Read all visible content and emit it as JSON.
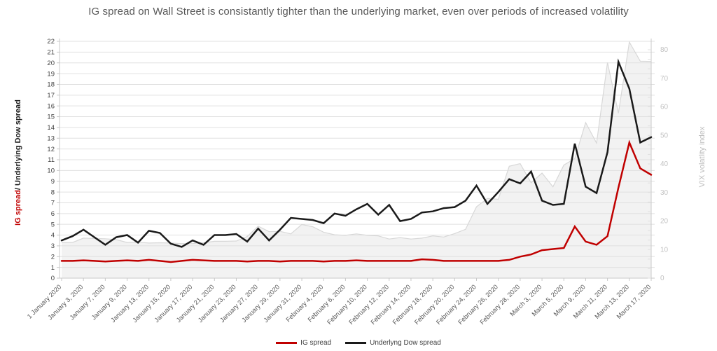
{
  "title": "IG spread on Wall Street is consistantly tighter than the underlying market, even over periods of increased volatility",
  "chart_data": {
    "type": "line",
    "title": "IG spread on Wall Street is consistantly tighter than the underlying market, even over periods of increased volatility",
    "x_tick_labels": [
      "1 January 2020",
      "January 3, 2020",
      "January 7, 2020",
      "January 9, 2020",
      "January 13, 2020",
      "January 15, 2020",
      "January 17, 2020",
      "January 21, 2020",
      "January 23, 2020",
      "January 27, 2020",
      "January 29, 2020",
      "January 31, 2020",
      "February 4, 2020",
      "February 6, 2020",
      "February 10, 2020",
      "February 12, 2020",
      "February 14, 2020",
      "February 18, 2020",
      "February 20, 2020",
      "February 24, 2020",
      "February 26, 2020",
      "February 28, 2020",
      "March 3, 2020",
      "March 5, 2020",
      "March 9, 2020",
      "March 11, 2020",
      "March 13, 2020",
      "March 17, 2020"
    ],
    "points_per_label": 2,
    "left_axis": {
      "title_red": "IG spread",
      "title_rest": "/ Underlying Dow spread",
      "min": 0,
      "max": 22,
      "step": 1
    },
    "right_axis": {
      "title": "VIX volatlity index",
      "min": 0,
      "max": 80,
      "step": 10
    },
    "grid": true,
    "legend_position": "bottom",
    "legend": [
      {
        "label": "IG spread",
        "color": "#c00000"
      },
      {
        "label": "Underlyng Dow spread",
        "color": "#1a1a1a"
      }
    ],
    "series": [
      {
        "name": "IG spread",
        "type": "line",
        "axis": "left",
        "color": "#c00000",
        "values": [
          1.6,
          1.6,
          1.65,
          1.6,
          1.55,
          1.6,
          1.65,
          1.6,
          1.7,
          1.6,
          1.5,
          1.6,
          1.7,
          1.65,
          1.6,
          1.6,
          1.6,
          1.55,
          1.6,
          1.6,
          1.55,
          1.6,
          1.6,
          1.6,
          1.55,
          1.6,
          1.6,
          1.65,
          1.6,
          1.6,
          1.6,
          1.6,
          1.6,
          1.75,
          1.7,
          1.6,
          1.6,
          1.6,
          1.6,
          1.6,
          1.6,
          1.7,
          2.0,
          2.2,
          2.6,
          2.7,
          2.8,
          4.8,
          3.4,
          3.1,
          3.9,
          8.4,
          12.6,
          10.2,
          9.6
        ]
      },
      {
        "name": "Underlyng Dow spread",
        "type": "line",
        "axis": "left",
        "color": "#1a1a1a",
        "values": [
          3.5,
          3.9,
          4.5,
          3.8,
          3.1,
          3.8,
          4.0,
          3.3,
          4.4,
          4.2,
          3.2,
          2.9,
          3.5,
          3.1,
          4.0,
          4.0,
          4.1,
          3.4,
          4.6,
          3.5,
          4.5,
          5.6,
          5.5,
          5.4,
          5.1,
          6.0,
          5.8,
          6.4,
          6.9,
          5.9,
          6.8,
          5.3,
          5.5,
          6.1,
          6.2,
          6.5,
          6.6,
          7.2,
          8.6,
          6.9,
          8.0,
          9.2,
          8.8,
          9.9,
          7.2,
          6.8,
          6.9,
          12.5,
          8.5,
          7.9,
          11.7,
          20.1,
          17.6,
          12.6,
          13.1
        ]
      },
      {
        "name": "VIX volatility index",
        "type": "area",
        "axis": "right",
        "color": "#d8d8d8",
        "fill": "#f2f2f2",
        "values": [
          12.5,
          12.5,
          14.0,
          13.9,
          13.8,
          13.5,
          12.5,
          12.6,
          12.3,
          12.4,
          12.3,
          12.1,
          12.1,
          12.4,
          12.9,
          12.9,
          13.0,
          14.6,
          18.2,
          16.3,
          16.4,
          15.5,
          18.8,
          18.0,
          16.1,
          15.2,
          15.0,
          15.5,
          15.0,
          14.8,
          13.7,
          14.2,
          13.7,
          14.0,
          14.8,
          14.4,
          15.6,
          17.1,
          25.0,
          27.9,
          27.6,
          39.2,
          40.1,
          33.4,
          36.8,
          32.0,
          39.6,
          41.9,
          54.5,
          47.3,
          75.5,
          57.8,
          82.7,
          76.0,
          75.9
        ]
      }
    ],
    "colors": {
      "ig_spread": "#c00000",
      "dow_spread": "#1a1a1a",
      "vix_fill": "#f2f2f2",
      "vix_border": "#d8d8d8",
      "gridline": "#e0e0e0",
      "axis": "#c8c8c8",
      "tick_label_left": "#3f3f3f",
      "tick_label_right": "#c2c2c2",
      "x_label": "#595959",
      "title": "#595959"
    }
  }
}
